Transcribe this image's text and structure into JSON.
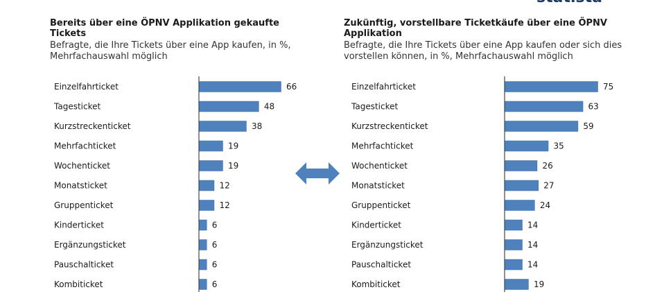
{
  "colors": {
    "bar": "#4f81bd",
    "bar_stroke": "#3a6aa3",
    "arrow": "#4f81bd",
    "brand_green": "#2f9e3a",
    "brand_blue": "#1f3a5f"
  },
  "brand": {
    "right_text": "statista"
  },
  "chart_data": [
    {
      "type": "bar",
      "orientation": "horizontal",
      "title": "Bereits über eine ÖPNV Applikation gekaufte Tickets",
      "subtitle": "Befragte, die Ihre Tickets über eine App kaufen, in %, Mehrfachauswahl möglich",
      "categories": [
        "Einzelfahrticket",
        "Tagesticket",
        "Kurzstreckenticket",
        "Mehrfachticket",
        "Wochenticket",
        "Monatsticket",
        "Gruppenticket",
        "Kinderticket",
        "Ergänzungsticket",
        "Pauschalticket",
        "Kombiticket"
      ],
      "values": [
        66,
        48,
        38,
        19,
        19,
        12,
        12,
        6,
        6,
        6,
        6
      ],
      "xlim": [
        0,
        66
      ],
      "grid": false,
      "data_labels": true
    },
    {
      "type": "bar",
      "orientation": "horizontal",
      "title": "Zukünftig, vorstellbare Ticketkäufe über eine ÖPNV Applikation",
      "subtitle": "Befragte, die Ihre Tickets über eine App kaufen oder sich dies vorstellen können, in %, Mehrfachauswahl möglich",
      "categories": [
        "Einzelfahrticket",
        "Tagesticket",
        "Kurzstreckenticket",
        "Mehrfachticket",
        "Wochenticket",
        "Monatsticket",
        "Gruppenticket",
        "Kinderticket",
        "Ergänzungsticket",
        "Pauschalticket",
        "Kombiticket"
      ],
      "values": [
        75,
        63,
        59,
        35,
        26,
        27,
        24,
        14,
        14,
        14,
        19
      ],
      "xlim": [
        0,
        75
      ],
      "grid": false,
      "data_labels": true
    }
  ]
}
